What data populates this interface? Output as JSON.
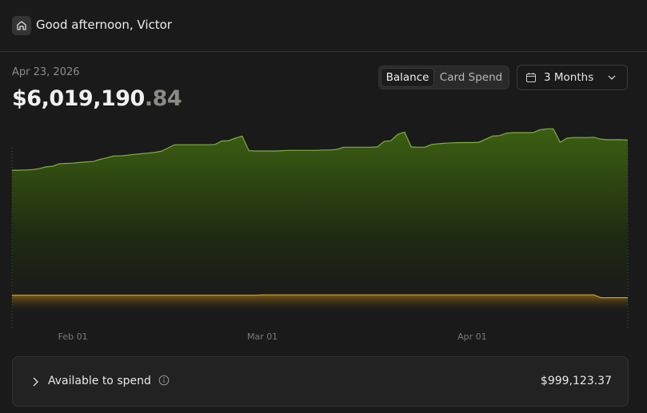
{
  "header": {
    "greeting": "Good afternoon, Victor"
  },
  "summary": {
    "date": "Apr 23, 2026",
    "balance_whole": "$6,019,190",
    "balance_cents": ".84"
  },
  "controls": {
    "tabs": [
      "Balance",
      "Card Spend"
    ],
    "range": "3 Months"
  },
  "chart_data": {
    "type": "area",
    "categories": [
      null,
      null,
      null,
      null,
      null,
      null,
      null,
      null,
      null,
      "Feb 01",
      null,
      null,
      null,
      null,
      null,
      null,
      null,
      null,
      null,
      null,
      null,
      null,
      null,
      null,
      null,
      null,
      null,
      null,
      null,
      null,
      null,
      null,
      null,
      null,
      null,
      null,
      null,
      "Mar 01",
      null,
      null,
      null,
      null,
      null,
      null,
      null,
      null,
      null,
      null,
      null,
      null,
      null,
      null,
      null,
      null,
      null,
      null,
      null,
      null,
      null,
      null,
      null,
      null,
      null,
      null,
      null,
      null,
      null,
      null,
      "Apr 01",
      null,
      null,
      null,
      null,
      null,
      null,
      null,
      null,
      null,
      null,
      null,
      null,
      null,
      null,
      null,
      null,
      null,
      null,
      null,
      null,
      null,
      null,
      null
    ],
    "series": [
      {
        "color": "#7fae45",
        "values": [
          5.05,
          5.05,
          5.06,
          5.07,
          5.1,
          5.16,
          5.18,
          5.26,
          5.27,
          5.28,
          5.3,
          5.32,
          5.33,
          5.4,
          5.45,
          5.51,
          5.51,
          5.53,
          5.56,
          5.58,
          5.6,
          5.62,
          5.66,
          5.76,
          5.87,
          5.87,
          5.87,
          5.87,
          5.87,
          5.87,
          5.88,
          5.99,
          6.0,
          6.08,
          6.15,
          5.68,
          5.67,
          5.67,
          5.67,
          5.67,
          5.68,
          5.69,
          5.69,
          5.69,
          5.69,
          5.69,
          5.7,
          5.7,
          5.72,
          5.79,
          5.79,
          5.79,
          5.79,
          5.79,
          5.8,
          5.98,
          6.0,
          6.2,
          6.28,
          5.8,
          5.79,
          5.79,
          5.88,
          5.9,
          5.92,
          5.93,
          5.94,
          5.94,
          5.94,
          5.95,
          6.05,
          6.15,
          6.16,
          6.24,
          6.26,
          6.26,
          6.26,
          6.26,
          6.35,
          6.38,
          6.38,
          5.95,
          6.08,
          6.1,
          6.1,
          6.1,
          6.11,
          6.05,
          6.03,
          6.03,
          6.03,
          6.02
        ]
      },
      {
        "color": "#c9962a",
        "values": [
          1.04,
          1.04,
          1.04,
          1.04,
          1.04,
          1.04,
          1.04,
          1.04,
          1.04,
          1.04,
          1.04,
          1.04,
          1.04,
          1.04,
          1.04,
          1.04,
          1.04,
          1.04,
          1.04,
          1.04,
          1.04,
          1.04,
          1.04,
          1.04,
          1.04,
          1.04,
          1.04,
          1.04,
          1.04,
          1.04,
          1.04,
          1.04,
          1.04,
          1.04,
          1.04,
          1.04,
          1.04,
          1.05,
          1.05,
          1.05,
          1.05,
          1.05,
          1.05,
          1.05,
          1.05,
          1.05,
          1.05,
          1.05,
          1.05,
          1.05,
          1.05,
          1.05,
          1.05,
          1.05,
          1.05,
          1.05,
          1.05,
          1.05,
          1.05,
          1.05,
          1.05,
          1.05,
          1.05,
          1.05,
          1.05,
          1.05,
          1.05,
          1.05,
          1.05,
          1.05,
          1.05,
          1.05,
          1.05,
          1.05,
          1.05,
          1.05,
          1.05,
          1.05,
          1.05,
          1.05,
          1.05,
          1.05,
          1.05,
          1.05,
          1.05,
          1.05,
          1.05,
          0.96,
          0.96,
          0.96,
          0.96,
          0.96
        ]
      }
    ],
    "ylim": [
      0,
      6.67
    ]
  },
  "card": {
    "label": "Available to spend",
    "amount": "$999,123.37"
  }
}
